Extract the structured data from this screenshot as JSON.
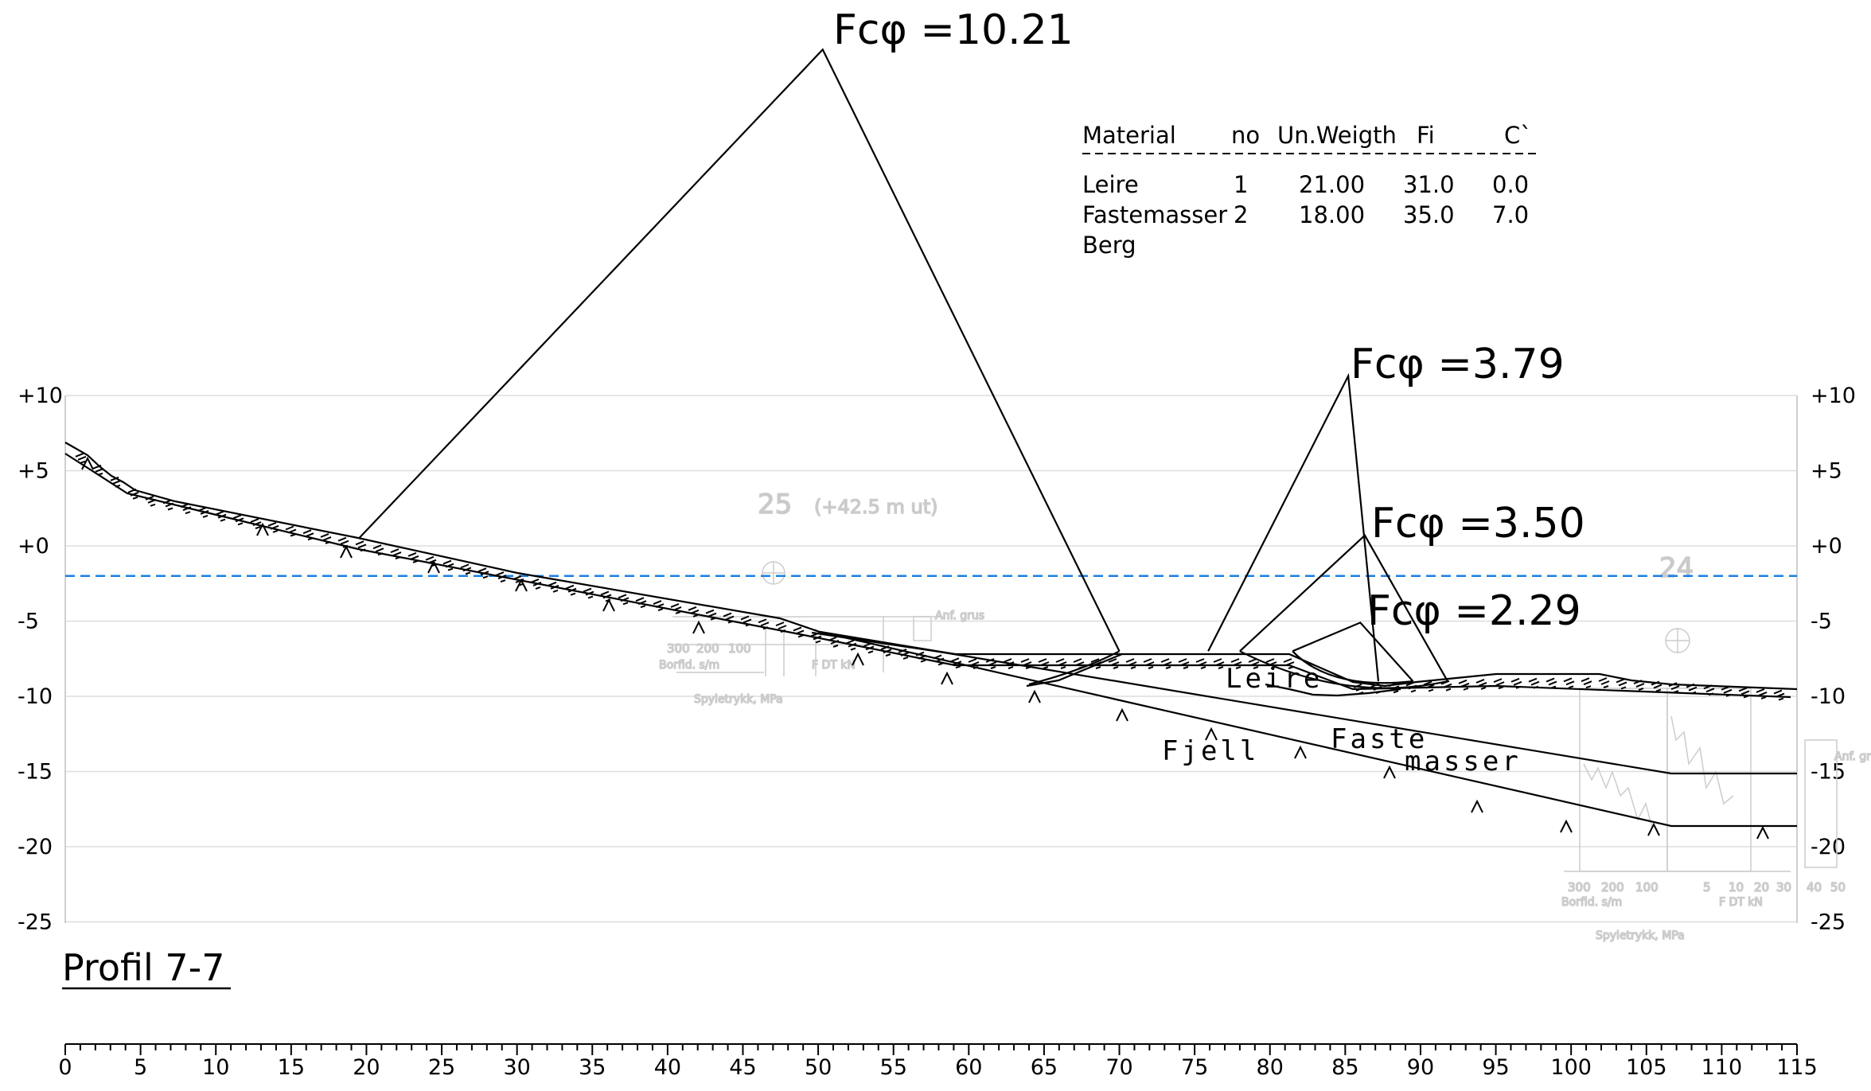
{
  "profile_title": "Profil 7-7",
  "y_axis": {
    "ticks": [
      10,
      5,
      0,
      -5,
      -10,
      -15,
      -20,
      -25
    ],
    "labels": [
      "+10",
      "+5",
      "+0",
      "-5",
      "-10",
      "-15",
      "-20",
      "-25"
    ]
  },
  "x_axis": {
    "ticks": [
      0,
      5,
      10,
      15,
      20,
      25,
      30,
      35,
      40,
      45,
      50,
      55,
      60,
      65,
      70,
      75,
      80,
      85,
      90,
      95,
      100,
      105,
      110,
      115
    ],
    "min": 0,
    "max": 115
  },
  "water_level": -2,
  "material_table": {
    "headers": [
      "Material",
      "no",
      "Un.Weigth",
      "Fi",
      "C`"
    ],
    "rows": [
      [
        "Leire",
        "1",
        "21.00",
        "31.0",
        "0.0"
      ],
      [
        "Fastemasser",
        "2",
        "18.00",
        "35.0",
        "7.0"
      ],
      [
        "Berg",
        "",
        "",
        "",
        ""
      ]
    ]
  },
  "safety_factors": [
    {
      "label": "Fcφ =10.21",
      "center": [
        50.3,
        33.0
      ],
      "entry": [
        19.5,
        0.5
      ],
      "exit": [
        70.0,
        -7.0
      ]
    },
    {
      "label": "Fcφ =3.79",
      "center": [
        85.2,
        11.3
      ],
      "entry": [
        75.9,
        -7.0
      ],
      "exit": [
        87.2,
        -9.0
      ]
    },
    {
      "label": "Fcφ =3.50",
      "center": [
        86.3,
        0.7
      ],
      "entry": [
        78.0,
        -7.0
      ],
      "exit": [
        91.8,
        -9.0
      ]
    },
    {
      "label": "Fcφ =2.29",
      "center": [
        86.0,
        -5.1
      ],
      "entry": [
        81.5,
        -7.0
      ],
      "exit": [
        89.5,
        -9.0
      ]
    }
  ],
  "soil_labels": {
    "clay": "Leire",
    "bedrock": "Fjell",
    "fill_line1": "Faste",
    "fill_line2": "masser"
  },
  "sounding_left": {
    "number": "25",
    "note": "(+42.5 m ut)",
    "label_borfld": "Borfld. s/m",
    "label_spyle": "Spyletrykk, MPa",
    "label_scale": [
      "300",
      "200",
      "100"
    ],
    "label_fdt": "F DT  kN",
    "label_grus": "Anf. grus"
  },
  "sounding_right": {
    "number": "24",
    "label_borfld": "Borfld. s/m",
    "label_spyle": "Spyletrykk, MPa",
    "label_scale": [
      "300",
      "200",
      "100"
    ],
    "label_fdt": "F DT  kN",
    "label_fscale": [
      "5",
      "10",
      "20",
      "30",
      "40",
      "50"
    ],
    "label_grus": "Anf. grus"
  },
  "colors": {
    "water_line": "#1a7fe0",
    "grid": "#dedede",
    "ink": "#000000"
  }
}
